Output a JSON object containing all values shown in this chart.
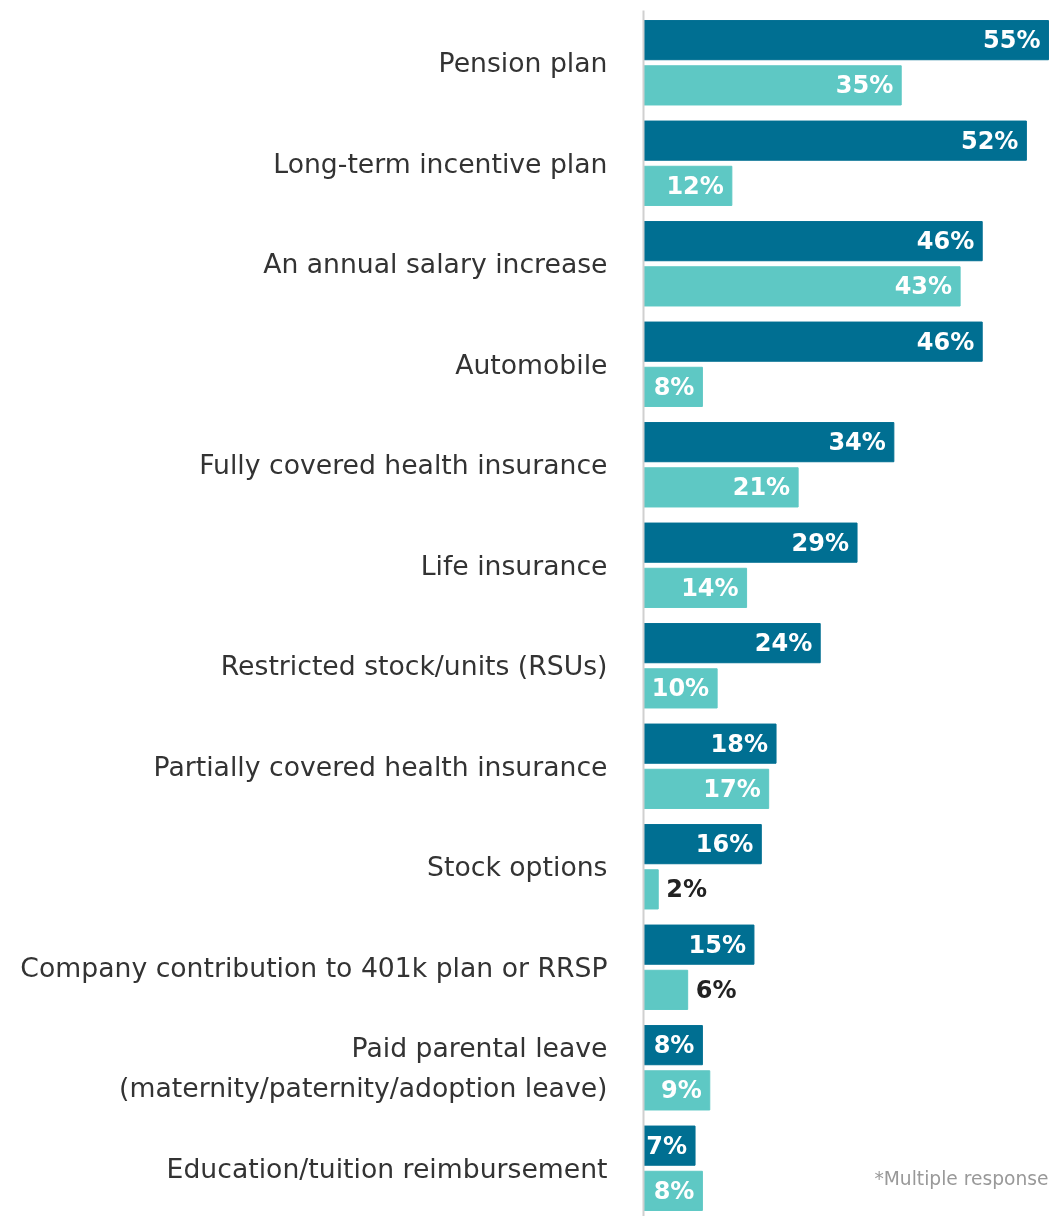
{
  "chart_data": {
    "type": "bar",
    "orientation": "horizontal",
    "categories": [
      "Pension plan",
      "Long-term incentive plan",
      "An annual salary increase",
      "Automobile",
      "Fully covered health insurance",
      "Life insurance",
      "Restricted stock/units (RSUs)",
      "Partially covered health insurance",
      "Stock options",
      "Company contribution to 401k plan or RRSP",
      "Paid parental leave\n(maternity/paternity/adoption leave)",
      "Education/tuition reimbursement"
    ],
    "series": [
      {
        "color": "#006f92",
        "values": [
          55,
          52,
          46,
          46,
          34,
          29,
          24,
          18,
          16,
          15,
          8,
          7
        ],
        "value_labels": [
          "55%",
          "52%",
          "46%",
          "46%",
          "34%",
          "29%",
          "24%",
          "18%",
          "16%",
          "15%",
          "8%",
          "7%"
        ]
      },
      {
        "color": "#5ec8c4",
        "values": [
          35,
          12,
          43,
          8,
          21,
          14,
          10,
          17,
          2,
          6,
          9,
          8
        ],
        "value_labels": [
          "35%",
          "12%",
          "43%",
          "8%",
          "21%",
          "14%",
          "10%",
          "17%",
          "2%",
          "6%",
          "9%",
          "8%"
        ]
      }
    ],
    "grid": false,
    "tick_labels": "y",
    "annotations": [
      "*Multiple response"
    ]
  }
}
